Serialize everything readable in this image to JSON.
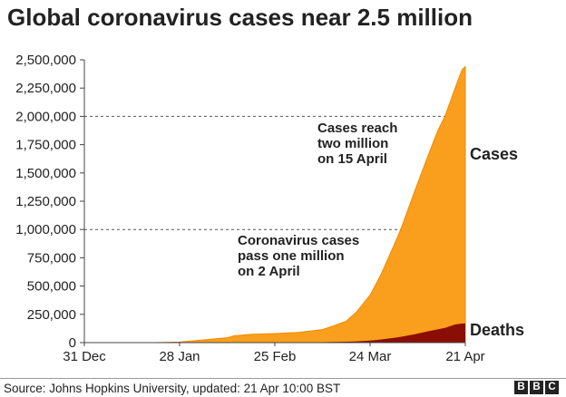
{
  "header": {
    "title": "Global coronavirus cases near 2.5 million"
  },
  "footer": {
    "source": "Source: Johns Hopkins University, updated: 21 Apr 10:00 BST",
    "logo": [
      "B",
      "B",
      "C"
    ]
  },
  "colors": {
    "cases": "#fa9f1d",
    "cases_outline": "#f08a00",
    "deaths": "#8b0e04",
    "text": "#222222",
    "axis": "#444444",
    "gridline": "#555555"
  },
  "chart_data": {
    "type": "area",
    "title": "Global coronavirus cases near 2.5 million",
    "xlabel": "",
    "ylabel": "",
    "ylim": [
      0,
      2500000
    ],
    "yticks": [
      0,
      250000,
      500000,
      750000,
      1000000,
      1250000,
      1500000,
      1750000,
      2000000,
      2250000,
      2500000
    ],
    "ytick_labels": [
      "0",
      "250,000",
      "500,000",
      "750,000",
      "1,000,000",
      "1,250,000",
      "1,500,000",
      "1,750,000",
      "2,000,000",
      "2,250,000",
      "2,500,000"
    ],
    "xticks": [
      "31 Dec",
      "28 Jan",
      "25 Feb",
      "24 Mar",
      "21 Apr"
    ],
    "grid": false,
    "reference_lines": [
      1000000,
      2000000
    ],
    "x": [
      "31 Dec",
      "7 Jan",
      "14 Jan",
      "21 Jan",
      "28 Jan",
      "4 Feb",
      "11 Feb",
      "13 Feb",
      "18 Feb",
      "25 Feb",
      "3 Mar",
      "10 Mar",
      "13 Mar",
      "17 Mar",
      "20 Mar",
      "24 Mar",
      "27 Mar",
      "31 Mar",
      "2 Apr",
      "6 Apr",
      "10 Apr",
      "13 Apr",
      "15 Apr",
      "18 Apr",
      "20 Apr",
      "21 Apr"
    ],
    "series": [
      {
        "name": "Cases",
        "values": [
          0,
          0,
          0,
          300,
          5000,
          24000,
          43000,
          60000,
          73000,
          80000,
          90000,
          115000,
          145000,
          190000,
          270000,
          420000,
          590000,
          860000,
          1000000,
          1330000,
          1650000,
          1880000,
          2000000,
          2250000,
          2410000,
          2440000
        ]
      },
      {
        "name": "Deaths",
        "values": [
          0,
          0,
          0,
          10,
          130,
          500,
          1000,
          1400,
          1900,
          2700,
          3100,
          4300,
          5400,
          7900,
          11200,
          18000,
          27000,
          42000,
          51000,
          73000,
          100000,
          118000,
          130000,
          160000,
          168000,
          170000
        ]
      }
    ],
    "annotations": [
      {
        "text": [
          "Cases reach",
          "two million",
          "on 15 April"
        ],
        "at": 2000000
      },
      {
        "text": [
          "Coronavirus cases",
          "pass one million",
          "on 2 April"
        ],
        "at": 1000000
      }
    ],
    "series_labels": [
      "Cases",
      "Deaths"
    ]
  }
}
